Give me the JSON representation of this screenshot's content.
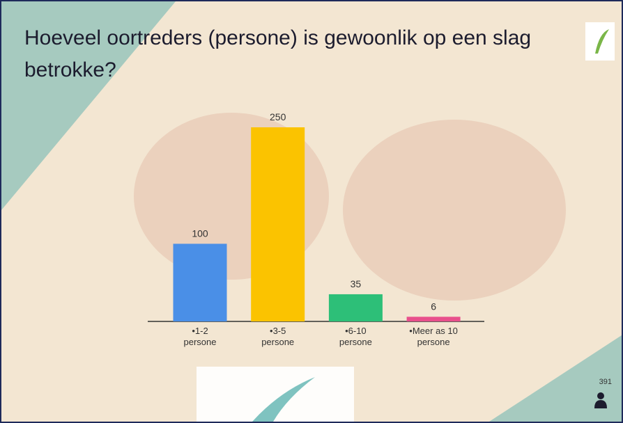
{
  "chart_data": {
    "type": "bar",
    "title": "Hoeveel oortreders (persone) is gewoonlik op een slag betrokke?",
    "categories": [
      "•1-2 persone",
      "•3-5 persone",
      "•6-10 persone",
      "•Meer as 10 persone"
    ],
    "values": [
      100,
      250,
      35,
      6
    ],
    "colors": [
      "#4a8fe7",
      "#fbc300",
      "#2dbf78",
      "#e8508c"
    ]
  },
  "participants": 391
}
